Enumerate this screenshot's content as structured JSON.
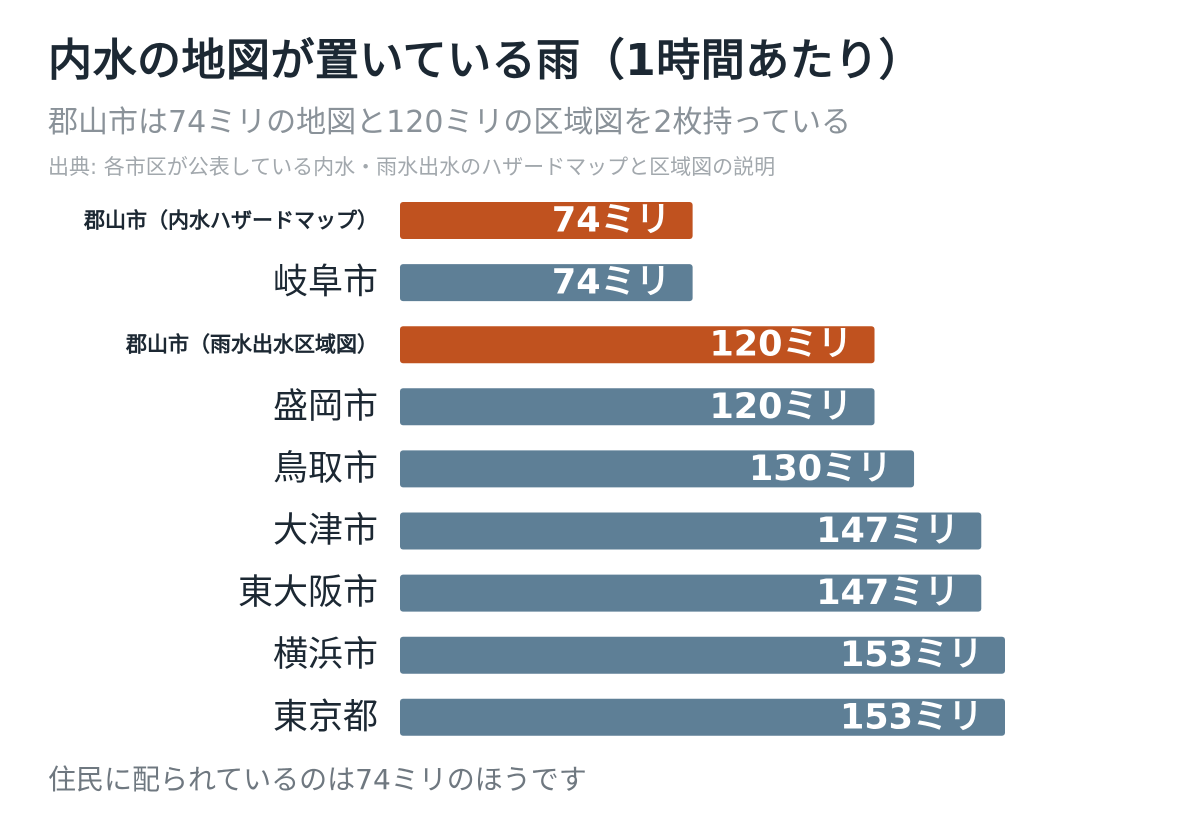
{
  "header": {
    "title": "内水の地図が置いている雨（1時間あたり）",
    "subtitle": "郡山市は74ミリの地図と120ミリの区域図を2枚持っている",
    "source": "出典: 各市区が公表している内水・雨水出水のハザードマップと区域図の説明"
  },
  "footer": {
    "note": "住民に配られているのは74ミリのほうです"
  },
  "chart_data": {
    "type": "bar",
    "orientation": "horizontal",
    "value_suffix": "ミリ",
    "categories": [
      "郡山市（内水ハザードマップ）",
      "岐阜市",
      "郡山市（雨水出水区域図）",
      "盛岡市",
      "鳥取市",
      "大津市",
      "東大阪市",
      "横浜市",
      "東京都"
    ],
    "values": [
      74,
      74,
      120,
      120,
      130,
      147,
      147,
      153,
      153
    ],
    "highlight": [
      true,
      false,
      true,
      false,
      false,
      false,
      false,
      false,
      false
    ],
    "xlim": [
      0,
      153
    ],
    "grid": false,
    "colors": {
      "highlight": "#c0521f",
      "default": "#5e7f96",
      "value_text": "#ffffff",
      "label_text": "#1c2833"
    }
  }
}
